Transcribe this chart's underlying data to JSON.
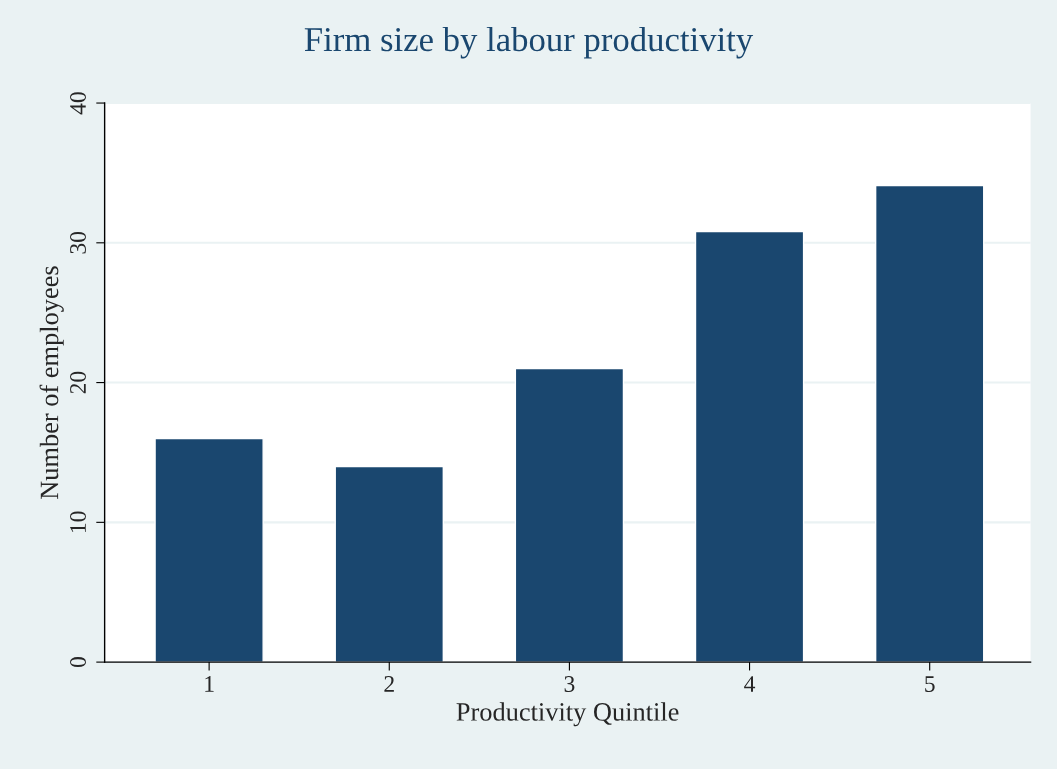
{
  "chart_data": {
    "type": "bar",
    "title": "Firm size by labour productivity",
    "xlabel": "Productivity Quintile",
    "ylabel": "Number of employees",
    "categories": [
      "1",
      "2",
      "3",
      "4",
      "5"
    ],
    "values": [
      16,
      14,
      21,
      30.8,
      34.1
    ],
    "color": "#1a476f",
    "ylim": [
      0,
      40
    ],
    "yticks": [
      0,
      10,
      20,
      30,
      40
    ],
    "grid": "y",
    "legend": false
  }
}
